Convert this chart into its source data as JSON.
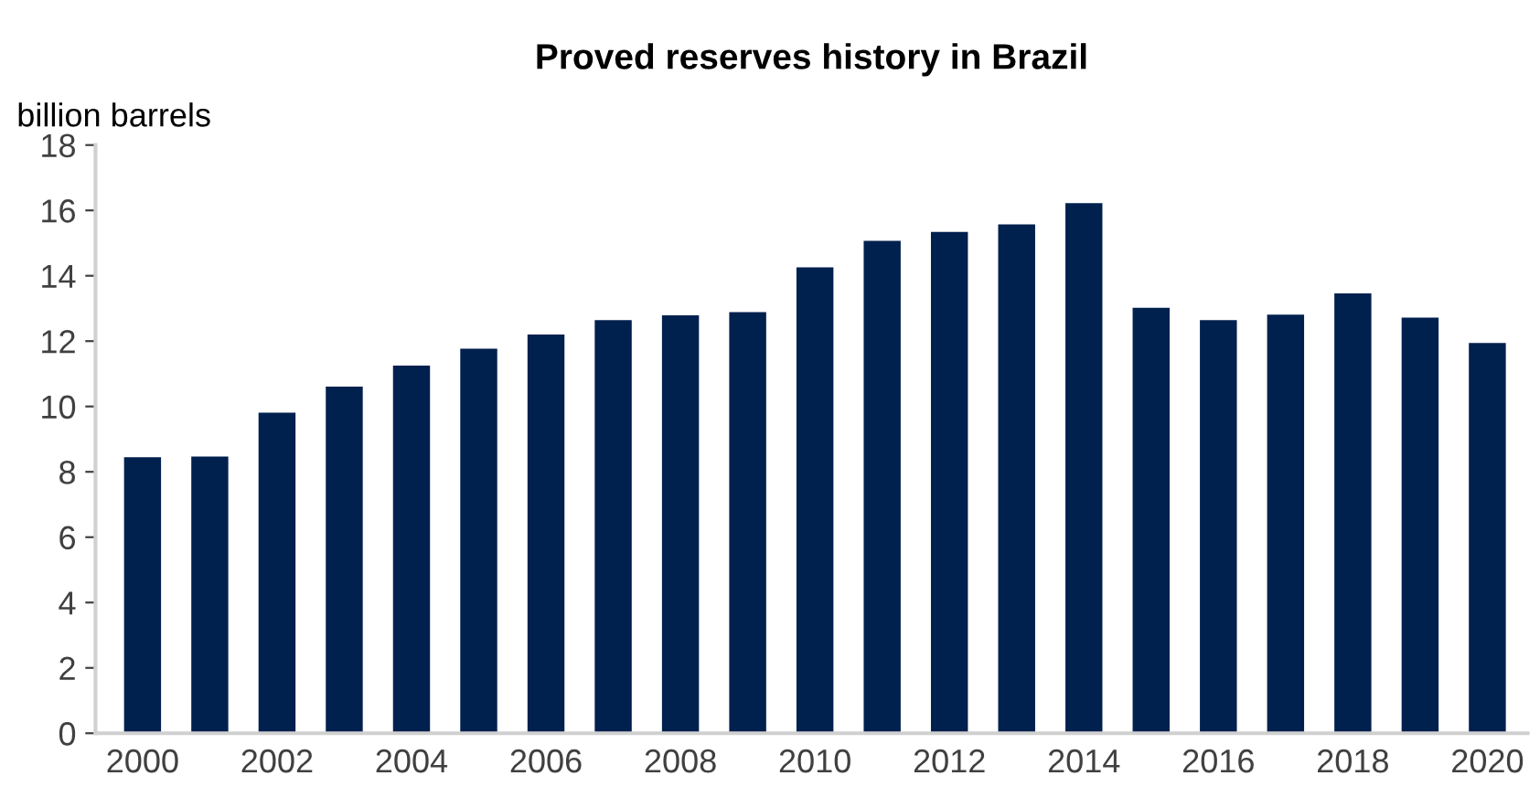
{
  "chart_data": {
    "type": "bar",
    "title": "Proved reserves history in Brazil",
    "ylabel": "billion barrels",
    "categories": [
      "2000",
      null,
      "2002",
      null,
      "2004",
      null,
      "2006",
      null,
      "2008",
      null,
      "2010",
      null,
      "2012",
      null,
      "2014",
      null,
      "2016",
      null,
      "2018",
      null,
      "2020"
    ],
    "values": [
      8.45,
      8.47,
      9.81,
      10.61,
      11.25,
      11.77,
      12.2,
      12.64,
      12.79,
      12.89,
      14.26,
      15.07,
      15.34,
      15.57,
      16.22,
      13.02,
      12.64,
      12.81,
      13.46,
      12.72,
      11.94
    ],
    "color": "#00204e",
    "ylim": [
      0,
      18
    ],
    "yticks": [
      0,
      2,
      4,
      6,
      8,
      10,
      12,
      14,
      16,
      18
    ],
    "grid": false
  }
}
